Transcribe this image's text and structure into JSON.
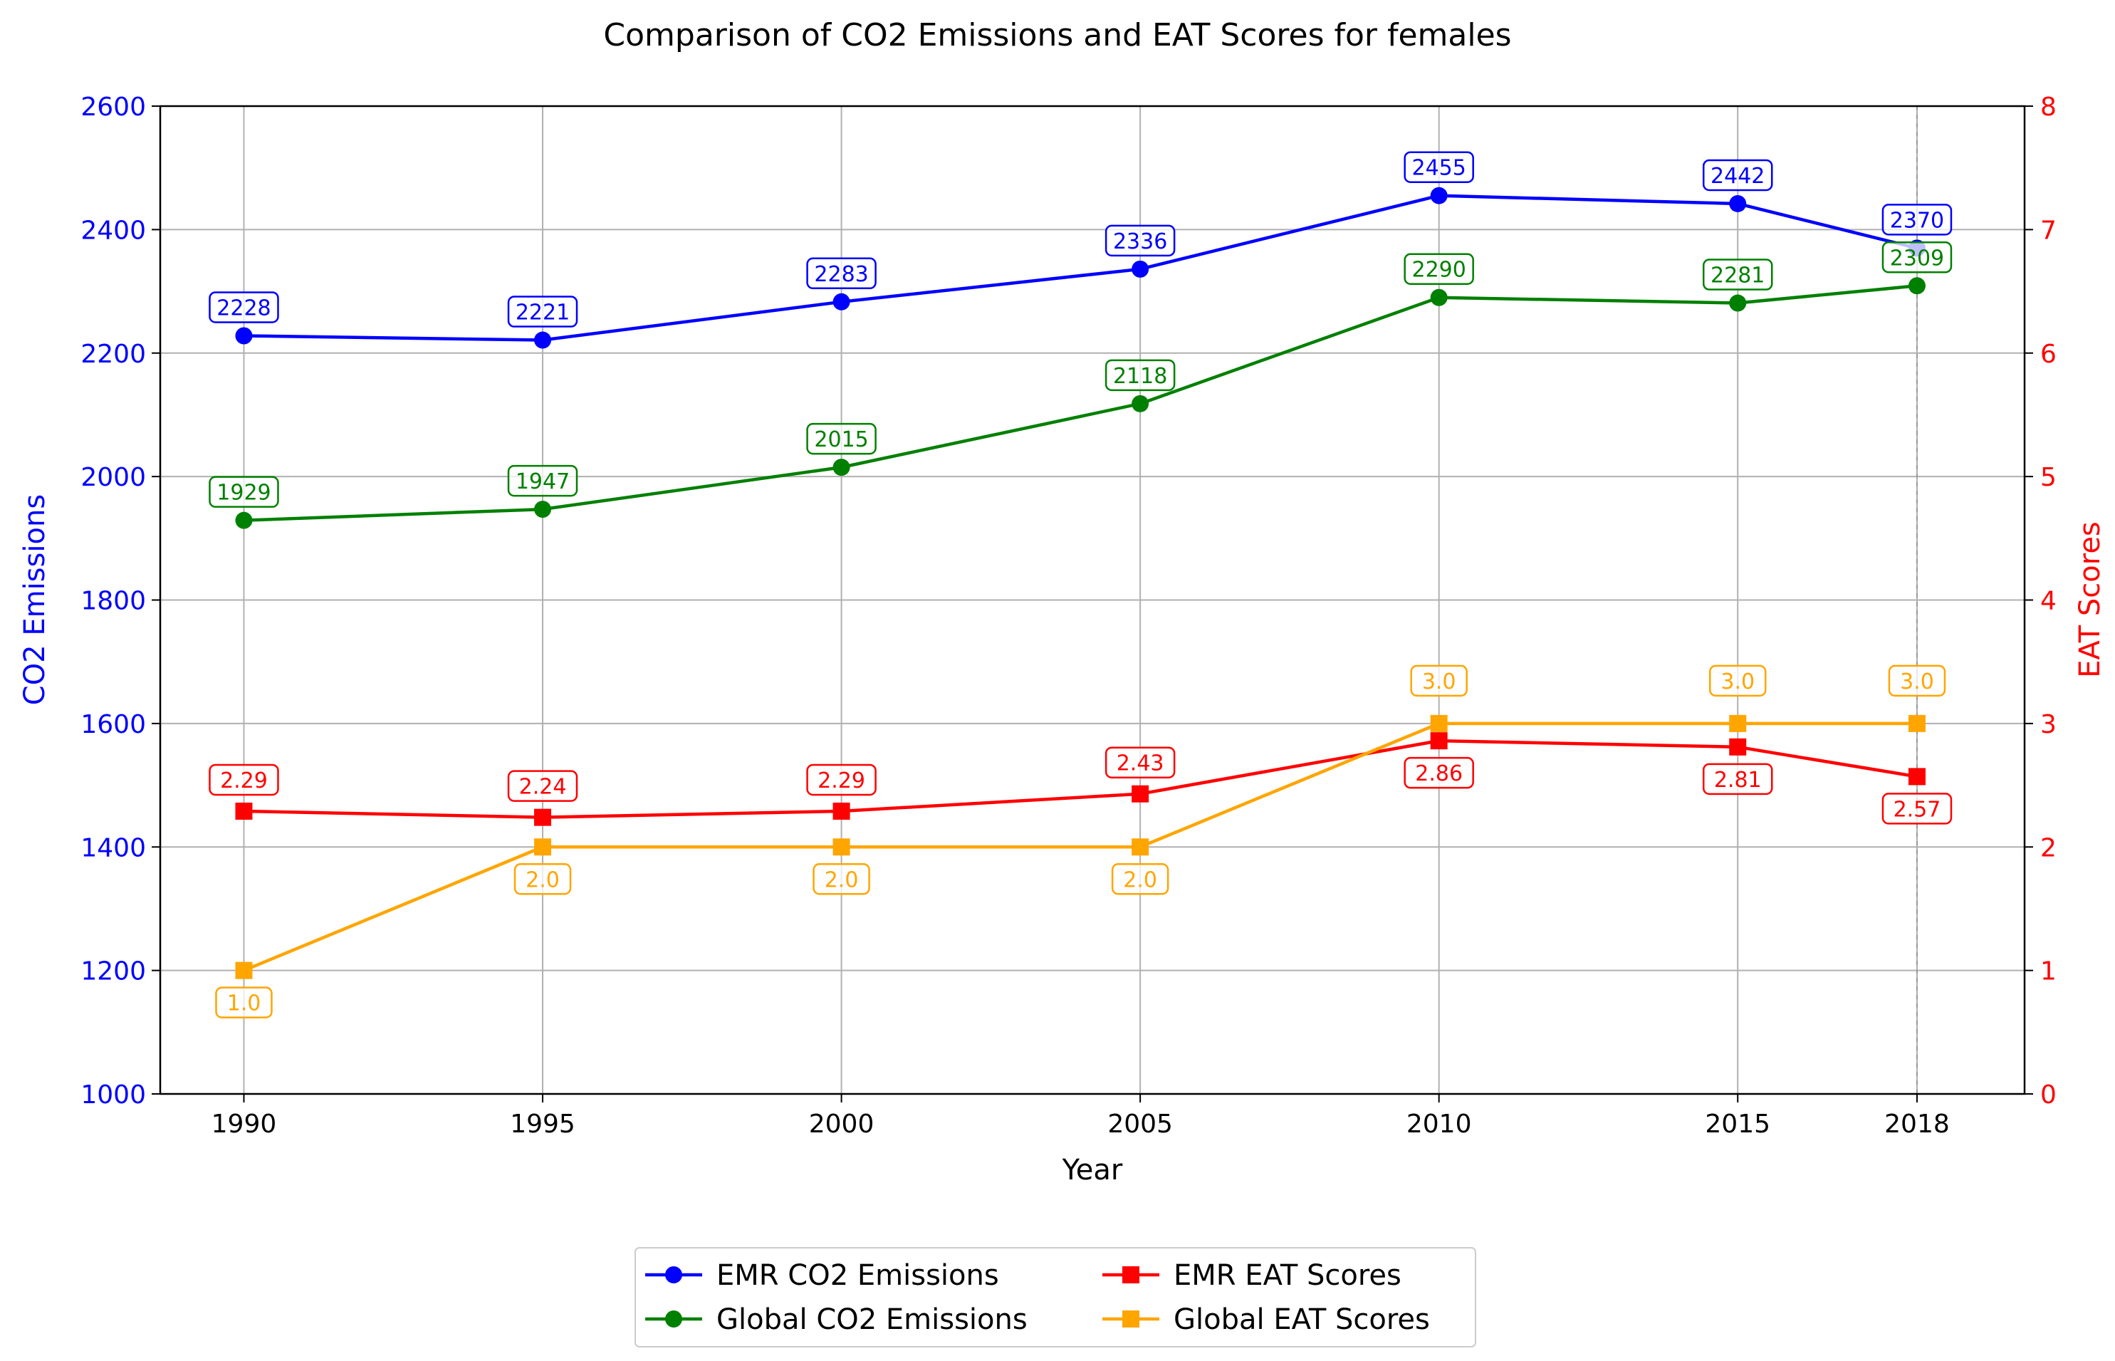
{
  "chart_data": {
    "type": "line",
    "title": "Comparison of CO2 Emissions and EAT Scores for females",
    "xlabel": "Year",
    "ylabel_left": "CO2 Emissions",
    "ylabel_right": "EAT Scores",
    "x": [
      1990,
      1995,
      2000,
      2005,
      2010,
      2015,
      2018
    ],
    "x_ticks": [
      1990,
      1995,
      2000,
      2005,
      2010,
      2015,
      2018
    ],
    "ylim_left": [
      1000,
      2600
    ],
    "yticks_left": [
      1000,
      1200,
      1400,
      1600,
      1800,
      2000,
      2200,
      2400,
      2600
    ],
    "ylim_right": [
      0,
      8
    ],
    "yticks_right": [
      0,
      1,
      2,
      3,
      4,
      5,
      6,
      7,
      8
    ],
    "grid": true,
    "legend_position": "bottom-center",
    "left_axis_color": "#0000ff",
    "right_axis_color": "#ff0000",
    "series": [
      {
        "name": "EMR CO2 Emissions",
        "axis": "left",
        "color": "#0000ff",
        "marker": "circle",
        "values": [
          2228,
          2221,
          2283,
          2336,
          2455,
          2442,
          2370
        ],
        "labels": [
          "2228",
          "2221",
          "2283",
          "2336",
          "2455",
          "2442",
          "2370"
        ]
      },
      {
        "name": "Global CO2 Emissions",
        "axis": "left",
        "color": "#008000",
        "marker": "circle",
        "values": [
          1929,
          1947,
          2015,
          2118,
          2290,
          2281,
          2309
        ],
        "labels": [
          "1929",
          "1947",
          "2015",
          "2118",
          "2290",
          "2281",
          "2309"
        ]
      },
      {
        "name": "EMR EAT Scores",
        "axis": "right",
        "color": "#ff0000",
        "marker": "square",
        "values": [
          2.29,
          2.24,
          2.29,
          2.43,
          2.86,
          2.81,
          2.57
        ],
        "labels": [
          "2.29",
          "2.24",
          "2.29",
          "2.43",
          "2.86",
          "2.81",
          "2.57"
        ]
      },
      {
        "name": "Global EAT Scores",
        "axis": "right",
        "color": "#ffa500",
        "marker": "square",
        "values": [
          1.0,
          2.0,
          2.0,
          2.0,
          3.0,
          3.0,
          3.0
        ],
        "labels": [
          "1.0",
          "2.0",
          "2.0",
          "2.0",
          "3.0",
          "3.0",
          "3.0"
        ]
      }
    ]
  }
}
